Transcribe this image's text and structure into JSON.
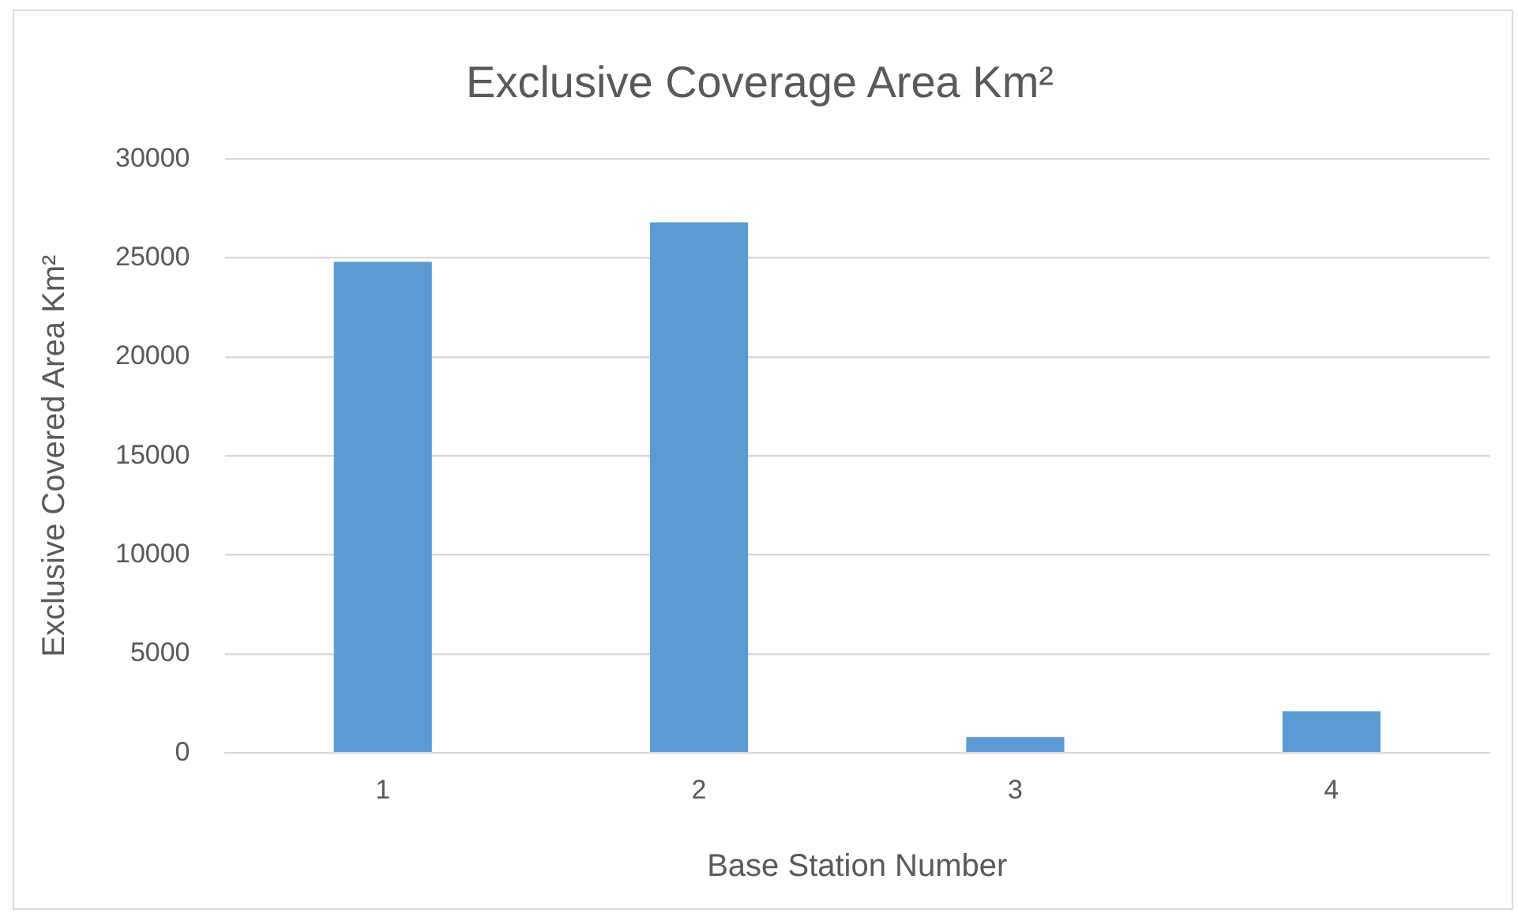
{
  "chart_data": {
    "type": "bar",
    "title": "Exclusive Coverage Area Km²",
    "xlabel": "Base Station Number",
    "ylabel": "Exclusive Covered Area Km²",
    "categories": [
      "1",
      "2",
      "3",
      "4"
    ],
    "values": [
      24800,
      26800,
      800,
      2100
    ],
    "color": "#5b9bd5",
    "ylim": [
      0,
      30000
    ],
    "yticks": [
      0,
      5000,
      10000,
      15000,
      20000,
      25000,
      30000
    ],
    "grid": "y",
    "legend": false
  }
}
